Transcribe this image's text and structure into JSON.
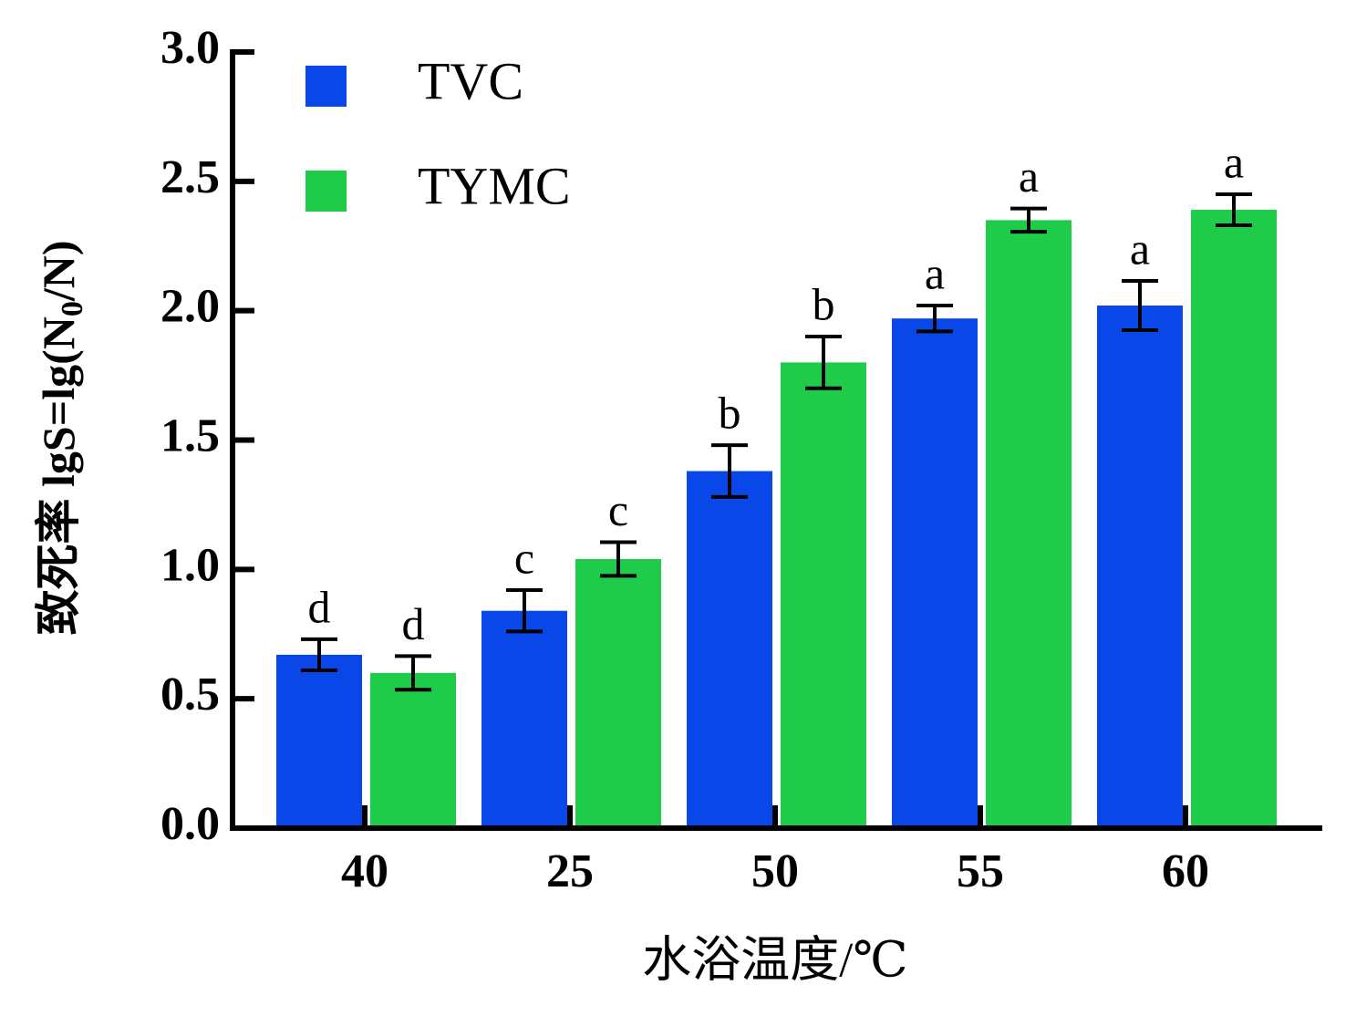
{
  "chart_data": {
    "type": "bar",
    "categories": [
      "40",
      "25",
      "50",
      "55",
      "60"
    ],
    "ylim": [
      0,
      3.0
    ],
    "yticks": [
      {
        "value": 0,
        "label": "0.0"
      },
      0.5,
      {
        "value": 1.0,
        "label": "1.0"
      },
      1.5,
      {
        "value": 2.0,
        "label": "2.0"
      },
      2.5,
      {
        "value": 3.0,
        "label": "3.0"
      }
    ],
    "ylabel_parts": [
      "致死率  lgS=lg(N",
      "0",
      "/N)"
    ],
    "xlabel": "水浴温度/℃",
    "series": [
      {
        "name": "TVC",
        "color": "#0a47e8",
        "values": [
          0.67,
          0.84,
          1.38,
          1.97,
          2.02
        ],
        "errors": [
          0.06,
          0.08,
          0.1,
          0.05,
          0.095
        ],
        "labels": [
          "d",
          "c",
          "b",
          "a",
          "a"
        ]
      },
      {
        "name": "TYMC",
        "color": "#1ecc4a",
        "values": [
          0.6,
          1.04,
          1.8,
          2.35,
          2.39
        ],
        "errors": [
          0.065,
          0.065,
          0.1,
          0.045,
          0.06
        ],
        "labels": [
          "d",
          "c",
          "b",
          "a",
          "a"
        ]
      }
    ]
  }
}
